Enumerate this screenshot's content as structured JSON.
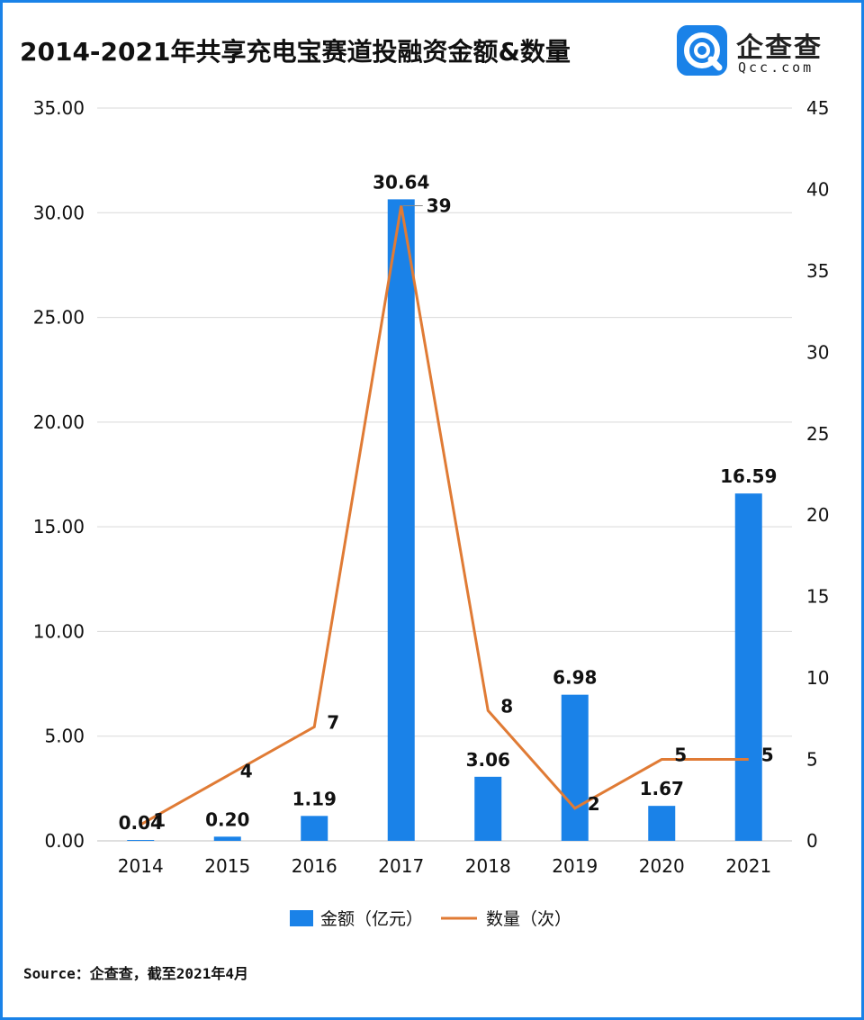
{
  "title": "2014-2021年共享充电宝赛道投融资金额&数量",
  "brand": {
    "name": "企查查",
    "domain": "Qcc.com",
    "color": "#1a82e8"
  },
  "source": "Source：企查查，截至2021年4月",
  "chart_data": {
    "type": "bar",
    "categories": [
      "2014",
      "2015",
      "2016",
      "2017",
      "2018",
      "2019",
      "2020",
      "2021"
    ],
    "series": [
      {
        "name": "金额（亿元）",
        "type": "bar",
        "axis": "left",
        "color": "#1a82e8",
        "values": [
          0.04,
          0.2,
          1.19,
          30.64,
          3.06,
          6.98,
          1.67,
          16.59
        ],
        "labels": [
          "0.04",
          "0.20",
          "1.19",
          "30.64",
          "3.06",
          "6.98",
          "1.67",
          "16.59"
        ]
      },
      {
        "name": "数量（次）",
        "type": "line",
        "axis": "right",
        "color": "#e07b35",
        "values": [
          1,
          4,
          7,
          39,
          8,
          2,
          5,
          5
        ],
        "labels": [
          "1",
          "4",
          "7",
          "39",
          "8",
          "2",
          "5",
          "5"
        ]
      }
    ],
    "y_left": {
      "ylim": [
        0,
        35
      ],
      "ticks": [
        "0.00",
        "5.00",
        "10.00",
        "15.00",
        "20.00",
        "25.00",
        "30.00",
        "35.00"
      ]
    },
    "y_right": {
      "ylim": [
        0,
        45
      ],
      "ticks": [
        "0",
        "5",
        "10",
        "15",
        "20",
        "25",
        "30",
        "35",
        "40",
        "45"
      ]
    },
    "grid": true,
    "legend_position": "bottom"
  }
}
